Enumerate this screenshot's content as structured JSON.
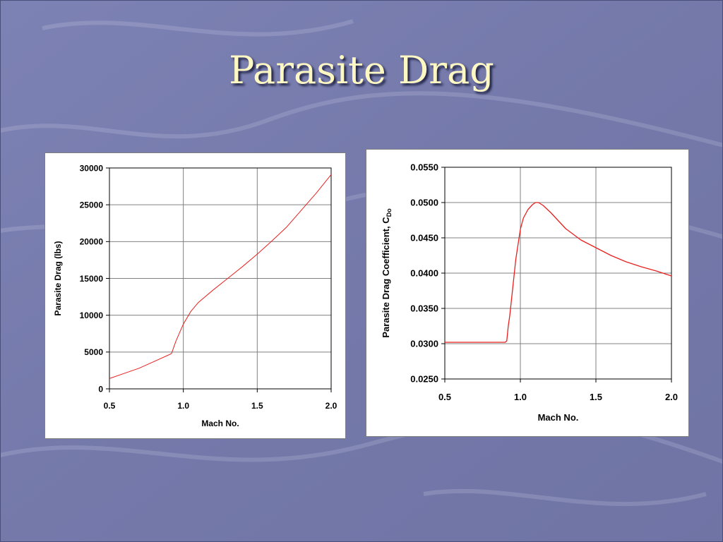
{
  "slide": {
    "title": "Parasite Drag"
  },
  "colors": {
    "background": "#7a7fb0",
    "title": "#fdf7c3",
    "series": "#e8211f",
    "grid": "#808080"
  },
  "chart_data": [
    {
      "type": "line",
      "xlabel": "Mach No.",
      "ylabel": "Parasite Drag (lbs)",
      "xlim": [
        0.5,
        2.0
      ],
      "ylim": [
        0,
        30000
      ],
      "xticks": [
        "0.5",
        "1.0",
        "1.5",
        "2.0"
      ],
      "yticks": [
        "0",
        "5000",
        "10000",
        "15000",
        "20000",
        "25000",
        "30000"
      ],
      "grid": true,
      "series": [
        {
          "x": [
            0.5,
            0.6,
            0.7,
            0.8,
            0.9,
            0.92,
            0.95,
            1.0,
            1.05,
            1.1,
            1.2,
            1.3,
            1.4,
            1.5,
            1.6,
            1.7,
            1.8,
            1.9,
            2.0
          ],
          "y": [
            1400,
            2100,
            2800,
            3700,
            4600,
            4800,
            6500,
            8800,
            10500,
            11700,
            13400,
            15000,
            16600,
            18300,
            20100,
            22000,
            24300,
            26600,
            29100
          ]
        }
      ]
    },
    {
      "type": "line",
      "xlabel": "Mach No.",
      "ylabel": "Parasite Drag Coefficient, C",
      "ylabel_sub": "Do",
      "xlim": [
        0.5,
        2.0
      ],
      "ylim": [
        0.025,
        0.055
      ],
      "xticks": [
        "0.5",
        "1.0",
        "1.5",
        "2.0"
      ],
      "yticks": [
        "0.0250",
        "0.0300",
        "0.0350",
        "0.0400",
        "0.0450",
        "0.0500",
        "0.0550"
      ],
      "grid": true,
      "series": [
        {
          "x": [
            0.5,
            0.7,
            0.9,
            0.91,
            0.92,
            0.93,
            0.95,
            0.97,
            1.0,
            1.02,
            1.05,
            1.08,
            1.1,
            1.12,
            1.15,
            1.2,
            1.3,
            1.4,
            1.5,
            1.6,
            1.7,
            1.8,
            1.9,
            2.0
          ],
          "y": [
            0.0302,
            0.0302,
            0.0302,
            0.0304,
            0.0325,
            0.034,
            0.038,
            0.042,
            0.0462,
            0.0478,
            0.049,
            0.0497,
            0.05,
            0.05,
            0.0496,
            0.0486,
            0.0463,
            0.0447,
            0.0436,
            0.0425,
            0.0416,
            0.0409,
            0.0403,
            0.0396
          ]
        }
      ]
    }
  ]
}
